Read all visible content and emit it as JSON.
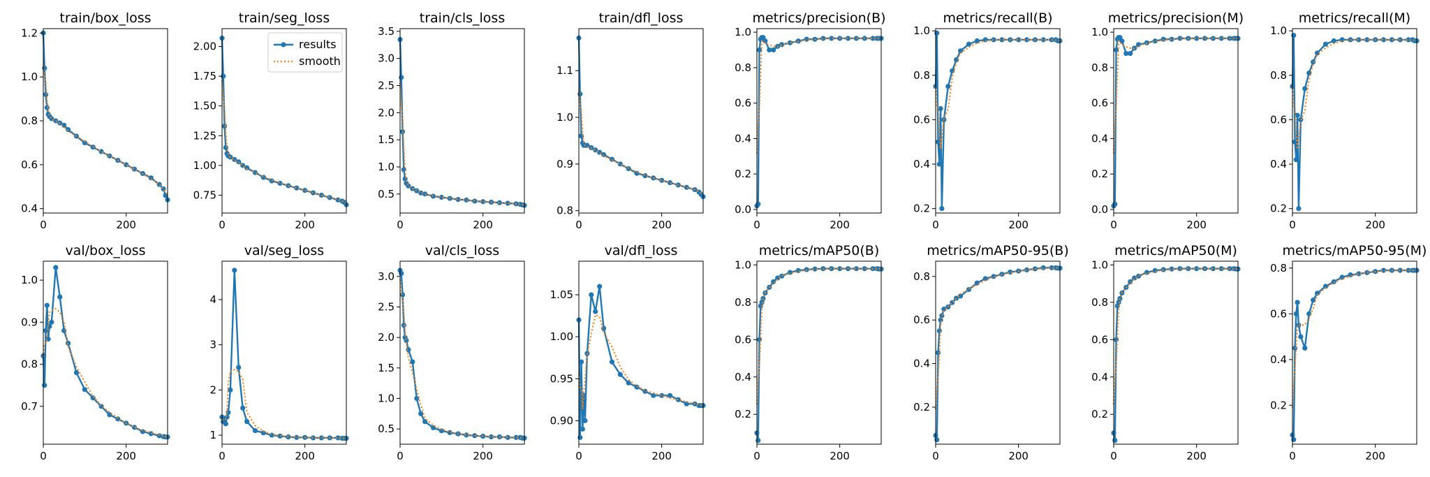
{
  "colors": {
    "results": "#1f77b4",
    "smooth": "#ff7f0e"
  },
  "legend": {
    "results_label": "results",
    "smooth_label": "smooth",
    "placement": "upper-right",
    "panel_index": 1
  },
  "chart_data": [
    {
      "type": "line",
      "title": "train/box_loss",
      "xlim": [
        0,
        300
      ],
      "ylim": [
        0.38,
        1.22
      ],
      "xticks": [
        0,
        200
      ],
      "yticks": [
        0.4,
        0.6,
        0.8,
        1.0,
        1.2
      ],
      "x": [
        0,
        3,
        6,
        9,
        12,
        15,
        20,
        30,
        40,
        50,
        60,
        80,
        100,
        120,
        140,
        160,
        180,
        200,
        220,
        240,
        260,
        280,
        290,
        295,
        300
      ],
      "y": [
        1.2,
        1.04,
        0.92,
        0.86,
        0.83,
        0.82,
        0.81,
        0.8,
        0.79,
        0.78,
        0.76,
        0.73,
        0.7,
        0.68,
        0.66,
        0.64,
        0.62,
        0.6,
        0.58,
        0.56,
        0.54,
        0.51,
        0.49,
        0.46,
        0.44
      ]
    },
    {
      "type": "line",
      "title": "train/seg_loss",
      "xlim": [
        0,
        300
      ],
      "ylim": [
        0.6,
        2.15
      ],
      "xticks": [
        0,
        200
      ],
      "yticks": [
        0.75,
        1.0,
        1.25,
        1.5,
        1.75,
        2.0
      ],
      "x": [
        0,
        3,
        6,
        9,
        12,
        15,
        20,
        30,
        40,
        50,
        60,
        80,
        100,
        120,
        140,
        160,
        180,
        200,
        220,
        240,
        260,
        280,
        290,
        295,
        300
      ],
      "y": [
        2.07,
        1.75,
        1.33,
        1.15,
        1.1,
        1.08,
        1.07,
        1.05,
        1.03,
        1.0,
        0.98,
        0.94,
        0.9,
        0.87,
        0.85,
        0.83,
        0.81,
        0.79,
        0.77,
        0.75,
        0.73,
        0.71,
        0.7,
        0.69,
        0.67
      ]
    },
    {
      "type": "line",
      "title": "train/cls_loss",
      "xlim": [
        0,
        300
      ],
      "ylim": [
        0.15,
        3.55
      ],
      "xticks": [
        0,
        200
      ],
      "yticks": [
        0.5,
        1.0,
        1.5,
        2.0,
        2.5,
        3.0,
        3.5
      ],
      "x": [
        0,
        3,
        6,
        9,
        12,
        15,
        20,
        30,
        40,
        50,
        60,
        80,
        100,
        120,
        140,
        160,
        180,
        200,
        220,
        240,
        260,
        280,
        290,
        295,
        300
      ],
      "y": [
        3.35,
        2.65,
        1.65,
        0.95,
        0.78,
        0.7,
        0.65,
        0.6,
        0.56,
        0.52,
        0.5,
        0.46,
        0.44,
        0.42,
        0.4,
        0.39,
        0.37,
        0.36,
        0.35,
        0.34,
        0.33,
        0.32,
        0.31,
        0.3,
        0.29
      ]
    },
    {
      "type": "line",
      "title": "train/dfl_loss",
      "xlim": [
        0,
        300
      ],
      "ylim": [
        0.795,
        1.19
      ],
      "xticks": [
        0,
        200
      ],
      "yticks": [
        0.8,
        0.9,
        1.0,
        1.1
      ],
      "x": [
        0,
        3,
        6,
        9,
        12,
        15,
        20,
        30,
        40,
        50,
        60,
        80,
        100,
        120,
        140,
        160,
        180,
        200,
        220,
        240,
        260,
        280,
        290,
        295,
        300
      ],
      "y": [
        1.17,
        1.05,
        0.96,
        0.945,
        0.94,
        0.94,
        0.94,
        0.935,
        0.93,
        0.925,
        0.92,
        0.91,
        0.9,
        0.89,
        0.88,
        0.875,
        0.87,
        0.865,
        0.86,
        0.855,
        0.85,
        0.845,
        0.84,
        0.835,
        0.83
      ]
    },
    {
      "type": "line",
      "title": "metrics/precision(B)",
      "xlim": [
        0,
        300
      ],
      "ylim": [
        -0.02,
        1.02
      ],
      "xticks": [
        0,
        200
      ],
      "yticks": [
        0.0,
        0.2,
        0.4,
        0.6,
        0.8,
        1.0
      ],
      "x": [
        0,
        3,
        6,
        9,
        12,
        15,
        20,
        30,
        40,
        50,
        60,
        80,
        100,
        120,
        140,
        160,
        180,
        200,
        220,
        240,
        260,
        280,
        290,
        295,
        300
      ],
      "y": [
        0.02,
        0.03,
        0.9,
        0.96,
        0.97,
        0.97,
        0.95,
        0.9,
        0.9,
        0.92,
        0.93,
        0.94,
        0.95,
        0.96,
        0.96,
        0.965,
        0.965,
        0.965,
        0.965,
        0.965,
        0.965,
        0.965,
        0.965,
        0.965,
        0.965
      ]
    },
    {
      "type": "line",
      "title": "metrics/recall(B)",
      "xlim": [
        0,
        300
      ],
      "ylim": [
        0.18,
        1.01
      ],
      "xticks": [
        0,
        200
      ],
      "yticks": [
        0.2,
        0.4,
        0.6,
        0.8,
        1.0
      ],
      "x": [
        0,
        3,
        6,
        9,
        12,
        15,
        20,
        30,
        40,
        50,
        60,
        80,
        100,
        120,
        140,
        160,
        180,
        200,
        220,
        240,
        260,
        280,
        290,
        295,
        300
      ],
      "y": [
        0.75,
        0.99,
        0.5,
        0.4,
        0.65,
        0.2,
        0.6,
        0.75,
        0.82,
        0.87,
        0.91,
        0.94,
        0.955,
        0.96,
        0.96,
        0.96,
        0.96,
        0.96,
        0.96,
        0.96,
        0.96,
        0.96,
        0.96,
        0.955,
        0.955
      ]
    },
    {
      "type": "line",
      "title": "metrics/precision(M)",
      "xlim": [
        0,
        300
      ],
      "ylim": [
        -0.02,
        1.02
      ],
      "xticks": [
        0,
        200
      ],
      "yticks": [
        0.0,
        0.2,
        0.4,
        0.6,
        0.8,
        1.0
      ],
      "x": [
        0,
        3,
        6,
        9,
        12,
        15,
        20,
        30,
        40,
        50,
        60,
        80,
        100,
        120,
        140,
        160,
        180,
        200,
        220,
        240,
        260,
        280,
        290,
        295,
        300
      ],
      "y": [
        0.02,
        0.03,
        0.9,
        0.96,
        0.97,
        0.97,
        0.95,
        0.88,
        0.88,
        0.91,
        0.93,
        0.94,
        0.95,
        0.96,
        0.96,
        0.965,
        0.965,
        0.965,
        0.965,
        0.965,
        0.965,
        0.965,
        0.965,
        0.965,
        0.965
      ]
    },
    {
      "type": "line",
      "title": "metrics/recall(M)",
      "xlim": [
        0,
        300
      ],
      "ylim": [
        0.18,
        1.01
      ],
      "xticks": [
        0,
        200
      ],
      "yticks": [
        0.2,
        0.4,
        0.6,
        0.8,
        1.0
      ],
      "x": [
        0,
        3,
        6,
        9,
        12,
        15,
        20,
        30,
        40,
        50,
        60,
        80,
        100,
        120,
        140,
        160,
        180,
        200,
        220,
        240,
        260,
        280,
        290,
        295,
        300
      ],
      "y": [
        0.75,
        0.98,
        0.5,
        0.42,
        0.62,
        0.2,
        0.6,
        0.74,
        0.81,
        0.86,
        0.9,
        0.94,
        0.955,
        0.96,
        0.96,
        0.96,
        0.96,
        0.96,
        0.96,
        0.96,
        0.96,
        0.96,
        0.96,
        0.955,
        0.955
      ]
    },
    {
      "type": "line",
      "title": "val/box_loss",
      "xlim": [
        0,
        300
      ],
      "ylim": [
        0.61,
        1.045
      ],
      "xticks": [
        0,
        200
      ],
      "yticks": [
        0.7,
        0.8,
        0.9,
        1.0
      ],
      "x": [
        0,
        3,
        6,
        9,
        12,
        15,
        20,
        30,
        40,
        50,
        60,
        80,
        100,
        120,
        140,
        160,
        180,
        200,
        220,
        240,
        260,
        280,
        290,
        295,
        300
      ],
      "y": [
        0.82,
        0.75,
        0.88,
        0.94,
        0.86,
        0.89,
        0.9,
        1.03,
        0.96,
        0.88,
        0.85,
        0.78,
        0.74,
        0.72,
        0.7,
        0.68,
        0.67,
        0.66,
        0.65,
        0.64,
        0.635,
        0.63,
        0.628,
        0.627,
        0.627
      ]
    },
    {
      "type": "line",
      "title": "val/seg_loss",
      "xlim": [
        0,
        300
      ],
      "ylim": [
        0.8,
        4.85
      ],
      "xticks": [
        0,
        200
      ],
      "yticks": [
        1,
        2,
        3,
        4
      ],
      "x": [
        0,
        3,
        6,
        9,
        12,
        15,
        20,
        30,
        40,
        50,
        60,
        80,
        100,
        120,
        140,
        160,
        180,
        200,
        220,
        240,
        260,
        280,
        290,
        295,
        300
      ],
      "y": [
        1.4,
        1.3,
        1.35,
        1.25,
        1.4,
        1.5,
        2.0,
        4.65,
        2.5,
        1.6,
        1.3,
        1.1,
        1.05,
        1.0,
        0.98,
        0.96,
        0.95,
        0.95,
        0.94,
        0.94,
        0.94,
        0.94,
        0.93,
        0.93,
        0.93
      ]
    },
    {
      "type": "line",
      "title": "val/cls_loss",
      "xlim": [
        0,
        300
      ],
      "ylim": [
        0.25,
        3.25
      ],
      "xticks": [
        0,
        200
      ],
      "yticks": [
        0.5,
        1.0,
        1.5,
        2.0,
        2.5,
        3.0
      ],
      "x": [
        0,
        3,
        6,
        9,
        12,
        15,
        20,
        30,
        40,
        50,
        60,
        80,
        100,
        120,
        140,
        160,
        180,
        200,
        220,
        240,
        260,
        280,
        290,
        295,
        300
      ],
      "y": [
        3.1,
        3.05,
        2.7,
        2.2,
        2.0,
        1.95,
        1.8,
        1.6,
        1.0,
        0.75,
        0.62,
        0.52,
        0.47,
        0.44,
        0.42,
        0.4,
        0.39,
        0.38,
        0.37,
        0.37,
        0.36,
        0.36,
        0.36,
        0.35,
        0.35
      ]
    },
    {
      "type": "line",
      "title": "val/dfl_loss",
      "xlim": [
        0,
        300
      ],
      "ylim": [
        0.872,
        1.09
      ],
      "xticks": [
        0,
        200
      ],
      "yticks": [
        0.9,
        0.95,
        1.0,
        1.05
      ],
      "x": [
        0,
        3,
        6,
        9,
        12,
        15,
        20,
        30,
        40,
        50,
        60,
        80,
        100,
        120,
        140,
        160,
        180,
        200,
        220,
        240,
        260,
        280,
        290,
        295,
        300
      ],
      "y": [
        1.02,
        0.88,
        0.97,
        0.89,
        0.93,
        0.9,
        0.98,
        1.05,
        1.03,
        1.06,
        1.01,
        0.97,
        0.955,
        0.945,
        0.94,
        0.935,
        0.93,
        0.93,
        0.93,
        0.925,
        0.92,
        0.92,
        0.918,
        0.918,
        0.918
      ]
    },
    {
      "type": "line",
      "title": "metrics/mAP50(B)",
      "xlim": [
        0,
        300
      ],
      "ylim": [
        0.04,
        1.02
      ],
      "xticks": [
        0,
        200
      ],
      "yticks": [
        0.2,
        0.4,
        0.6,
        0.8,
        1.0
      ],
      "x": [
        0,
        3,
        6,
        9,
        12,
        15,
        20,
        30,
        40,
        50,
        60,
        80,
        100,
        120,
        140,
        160,
        180,
        200,
        220,
        240,
        260,
        280,
        290,
        295,
        300
      ],
      "y": [
        0.1,
        0.06,
        0.6,
        0.78,
        0.8,
        0.82,
        0.85,
        0.88,
        0.91,
        0.93,
        0.94,
        0.96,
        0.97,
        0.975,
        0.978,
        0.98,
        0.98,
        0.98,
        0.98,
        0.98,
        0.98,
        0.98,
        0.98,
        0.978,
        0.978
      ]
    },
    {
      "type": "line",
      "title": "metrics/mAP50-95(B)",
      "xlim": [
        0,
        300
      ],
      "ylim": [
        0.03,
        0.87
      ],
      "xticks": [
        0,
        200
      ],
      "yticks": [
        0.2,
        0.4,
        0.6,
        0.8
      ],
      "x": [
        0,
        3,
        6,
        9,
        12,
        15,
        20,
        30,
        40,
        50,
        60,
        80,
        100,
        120,
        140,
        160,
        180,
        200,
        220,
        240,
        260,
        280,
        290,
        295,
        300
      ],
      "y": [
        0.07,
        0.05,
        0.45,
        0.55,
        0.6,
        0.62,
        0.65,
        0.66,
        0.68,
        0.7,
        0.71,
        0.74,
        0.77,
        0.79,
        0.8,
        0.81,
        0.82,
        0.825,
        0.83,
        0.835,
        0.84,
        0.84,
        0.84,
        0.838,
        0.838
      ]
    },
    {
      "type": "line",
      "title": "metrics/mAP50(M)",
      "xlim": [
        0,
        300
      ],
      "ylim": [
        0.04,
        1.02
      ],
      "xticks": [
        0,
        200
      ],
      "yticks": [
        0.2,
        0.4,
        0.6,
        0.8,
        1.0
      ],
      "x": [
        0,
        3,
        6,
        9,
        12,
        15,
        20,
        30,
        40,
        50,
        60,
        80,
        100,
        120,
        140,
        160,
        180,
        200,
        220,
        240,
        260,
        280,
        290,
        295,
        300
      ],
      "y": [
        0.1,
        0.06,
        0.6,
        0.78,
        0.8,
        0.82,
        0.85,
        0.88,
        0.91,
        0.93,
        0.94,
        0.96,
        0.97,
        0.975,
        0.978,
        0.98,
        0.98,
        0.98,
        0.98,
        0.98,
        0.98,
        0.98,
        0.98,
        0.978,
        0.978
      ]
    },
    {
      "type": "line",
      "title": "metrics/mAP50-95(M)",
      "xlim": [
        0,
        300
      ],
      "ylim": [
        0.03,
        0.83
      ],
      "xticks": [
        0,
        200
      ],
      "yticks": [
        0.2,
        0.4,
        0.6,
        0.8
      ],
      "x": [
        0,
        3,
        6,
        9,
        12,
        15,
        20,
        30,
        40,
        50,
        60,
        80,
        100,
        120,
        140,
        160,
        180,
        200,
        220,
        240,
        260,
        280,
        290,
        295,
        300
      ],
      "y": [
        0.07,
        0.05,
        0.45,
        0.6,
        0.65,
        0.55,
        0.5,
        0.45,
        0.6,
        0.66,
        0.69,
        0.72,
        0.74,
        0.76,
        0.77,
        0.775,
        0.78,
        0.785,
        0.79,
        0.79,
        0.79,
        0.79,
        0.79,
        0.79,
        0.79
      ]
    }
  ]
}
